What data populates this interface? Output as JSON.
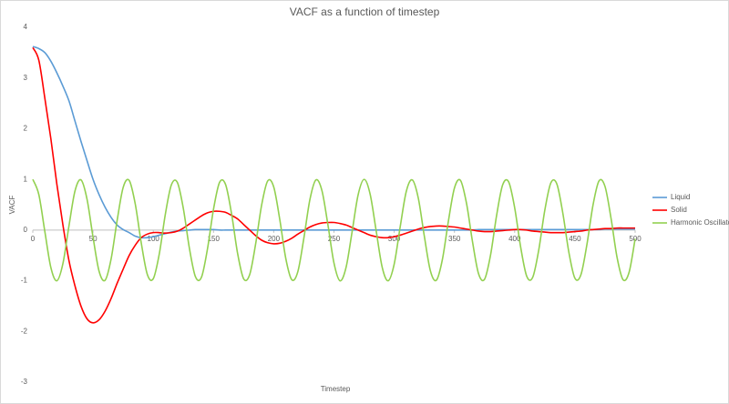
{
  "chart_data": {
    "type": "line",
    "title": "VACF as a function of timestep",
    "x_label": "Timestep",
    "y_label": "VACF",
    "xlim": [
      0,
      500
    ],
    "ylim": [
      -3,
      4
    ],
    "xticks": [
      0,
      50,
      100,
      150,
      200,
      250,
      300,
      350,
      400,
      450,
      500
    ],
    "yticks": [
      -3,
      -2,
      -1,
      0,
      1,
      2,
      3,
      4
    ],
    "grid": false,
    "legend": "right",
    "x": [
      0,
      5,
      10,
      15,
      20,
      25,
      30,
      35,
      40,
      45,
      50,
      55,
      60,
      65,
      70,
      75,
      80,
      85,
      90,
      95,
      100,
      105,
      110,
      115,
      120,
      125,
      130,
      135,
      140,
      145,
      150,
      155,
      160,
      165,
      170,
      175,
      180,
      185,
      190,
      195,
      200,
      205,
      210,
      215,
      220,
      225,
      230,
      235,
      240,
      245,
      250,
      255,
      260,
      265,
      270,
      275,
      280,
      285,
      290,
      295,
      300,
      305,
      310,
      315,
      320,
      325,
      330,
      335,
      340,
      345,
      350,
      355,
      360,
      365,
      370,
      375,
      380,
      385,
      390,
      395,
      400,
      405,
      410,
      415,
      420,
      425,
      430,
      435,
      440,
      445,
      450,
      455,
      460,
      465,
      470,
      475,
      480,
      485,
      490,
      495,
      500
    ],
    "series": [
      {
        "name": "Liquid",
        "color": "#5b9bd5",
        "values": [
          3.62,
          3.58,
          3.5,
          3.33,
          3.1,
          2.84,
          2.55,
          2.15,
          1.75,
          1.37,
          1.0,
          0.7,
          0.45,
          0.25,
          0.1,
          0.01,
          -0.05,
          -0.12,
          -0.15,
          -0.15,
          -0.13,
          -0.1,
          -0.07,
          -0.04,
          -0.02,
          -0.01,
          0,
          0.01,
          0.01,
          0.01,
          0.01,
          0,
          0,
          0,
          0,
          0,
          0,
          0,
          0,
          0,
          0,
          0,
          0,
          0,
          0,
          0,
          0,
          0,
          0,
          0,
          0,
          0,
          0,
          0,
          0,
          0,
          0,
          0,
          0,
          0,
          0,
          0,
          0,
          0,
          0,
          0,
          0,
          0,
          0,
          0,
          0,
          0,
          0,
          0,
          0.01,
          0.01,
          0.01,
          0.01,
          0.01,
          0.01,
          0.01,
          0.01,
          0.01,
          0.01,
          0.01,
          0.01,
          0.01,
          0.01,
          0.01,
          0.01,
          0.01,
          0.01,
          0.01,
          0.01,
          0.01,
          0.02,
          0.02,
          0.02,
          0.02,
          0.02,
          0.02
        ]
      },
      {
        "name": "Solid",
        "color": "#ff0000",
        "values": [
          3.6,
          3.35,
          2.6,
          1.8,
          0.9,
          0.1,
          -0.6,
          -1.1,
          -1.5,
          -1.75,
          -1.83,
          -1.77,
          -1.6,
          -1.35,
          -1.05,
          -0.77,
          -0.5,
          -0.3,
          -0.15,
          -0.08,
          -0.05,
          -0.05,
          -0.06,
          -0.05,
          -0.02,
          0.04,
          0.12,
          0.2,
          0.28,
          0.34,
          0.37,
          0.37,
          0.35,
          0.29,
          0.22,
          0.11,
          0.0,
          -0.11,
          -0.2,
          -0.25,
          -0.27,
          -0.26,
          -0.22,
          -0.16,
          -0.08,
          -0.01,
          0.06,
          0.11,
          0.14,
          0.15,
          0.15,
          0.13,
          0.1,
          0.05,
          0.0,
          -0.05,
          -0.1,
          -0.13,
          -0.15,
          -0.15,
          -0.13,
          -0.1,
          -0.06,
          -0.02,
          0.02,
          0.05,
          0.07,
          0.08,
          0.08,
          0.07,
          0.06,
          0.04,
          0.02,
          0.0,
          -0.02,
          -0.03,
          -0.03,
          -0.02,
          -0.01,
          0.0,
          0.01,
          0.01,
          0.0,
          -0.02,
          -0.03,
          -0.04,
          -0.05,
          -0.05,
          -0.05,
          -0.04,
          -0.03,
          -0.02,
          0.0,
          0.01,
          0.02,
          0.03,
          0.03,
          0.04,
          0.04,
          0.04,
          0.04
        ]
      },
      {
        "name": "Harmonic Oscillator",
        "color": "#92d050",
        "values": [
          1,
          0.7,
          -0.03,
          -0.74,
          -1,
          -0.66,
          0.08,
          0.77,
          0.99,
          0.61,
          -0.14,
          -0.81,
          -0.99,
          -0.57,
          0.19,
          0.84,
          0.98,
          0.52,
          -0.25,
          -0.87,
          -0.96,
          -0.47,
          0.31,
          0.89,
          0.94,
          0.42,
          -0.36,
          -0.92,
          -0.93,
          -0.37,
          0.41,
          0.94,
          0.9,
          0.32,
          -0.46,
          -0.96,
          -0.88,
          -0.27,
          0.5,
          0.97,
          0.85,
          0.21,
          -0.56,
          -0.98,
          -0.82,
          -0.16,
          0.6,
          0.99,
          0.78,
          0.1,
          -0.65,
          -1,
          -0.74,
          -0.04,
          0.69,
          1,
          0.71,
          -0.01,
          -0.73,
          -1,
          -0.67,
          0.07,
          0.76,
          0.99,
          0.63,
          -0.12,
          -0.8,
          -0.99,
          -0.58,
          0.18,
          0.83,
          0.98,
          0.53,
          -0.23,
          -0.86,
          -0.97,
          -0.49,
          0.29,
          0.89,
          0.95,
          0.44,
          -0.34,
          -0.91,
          -0.93,
          -0.39,
          0.39,
          0.93,
          0.91,
          0.33,
          -0.44,
          -0.95,
          -0.88,
          -0.28,
          0.49,
          0.97,
          0.86,
          0.23,
          -0.54,
          -0.98,
          -0.83,
          -0.17
        ]
      }
    ]
  }
}
